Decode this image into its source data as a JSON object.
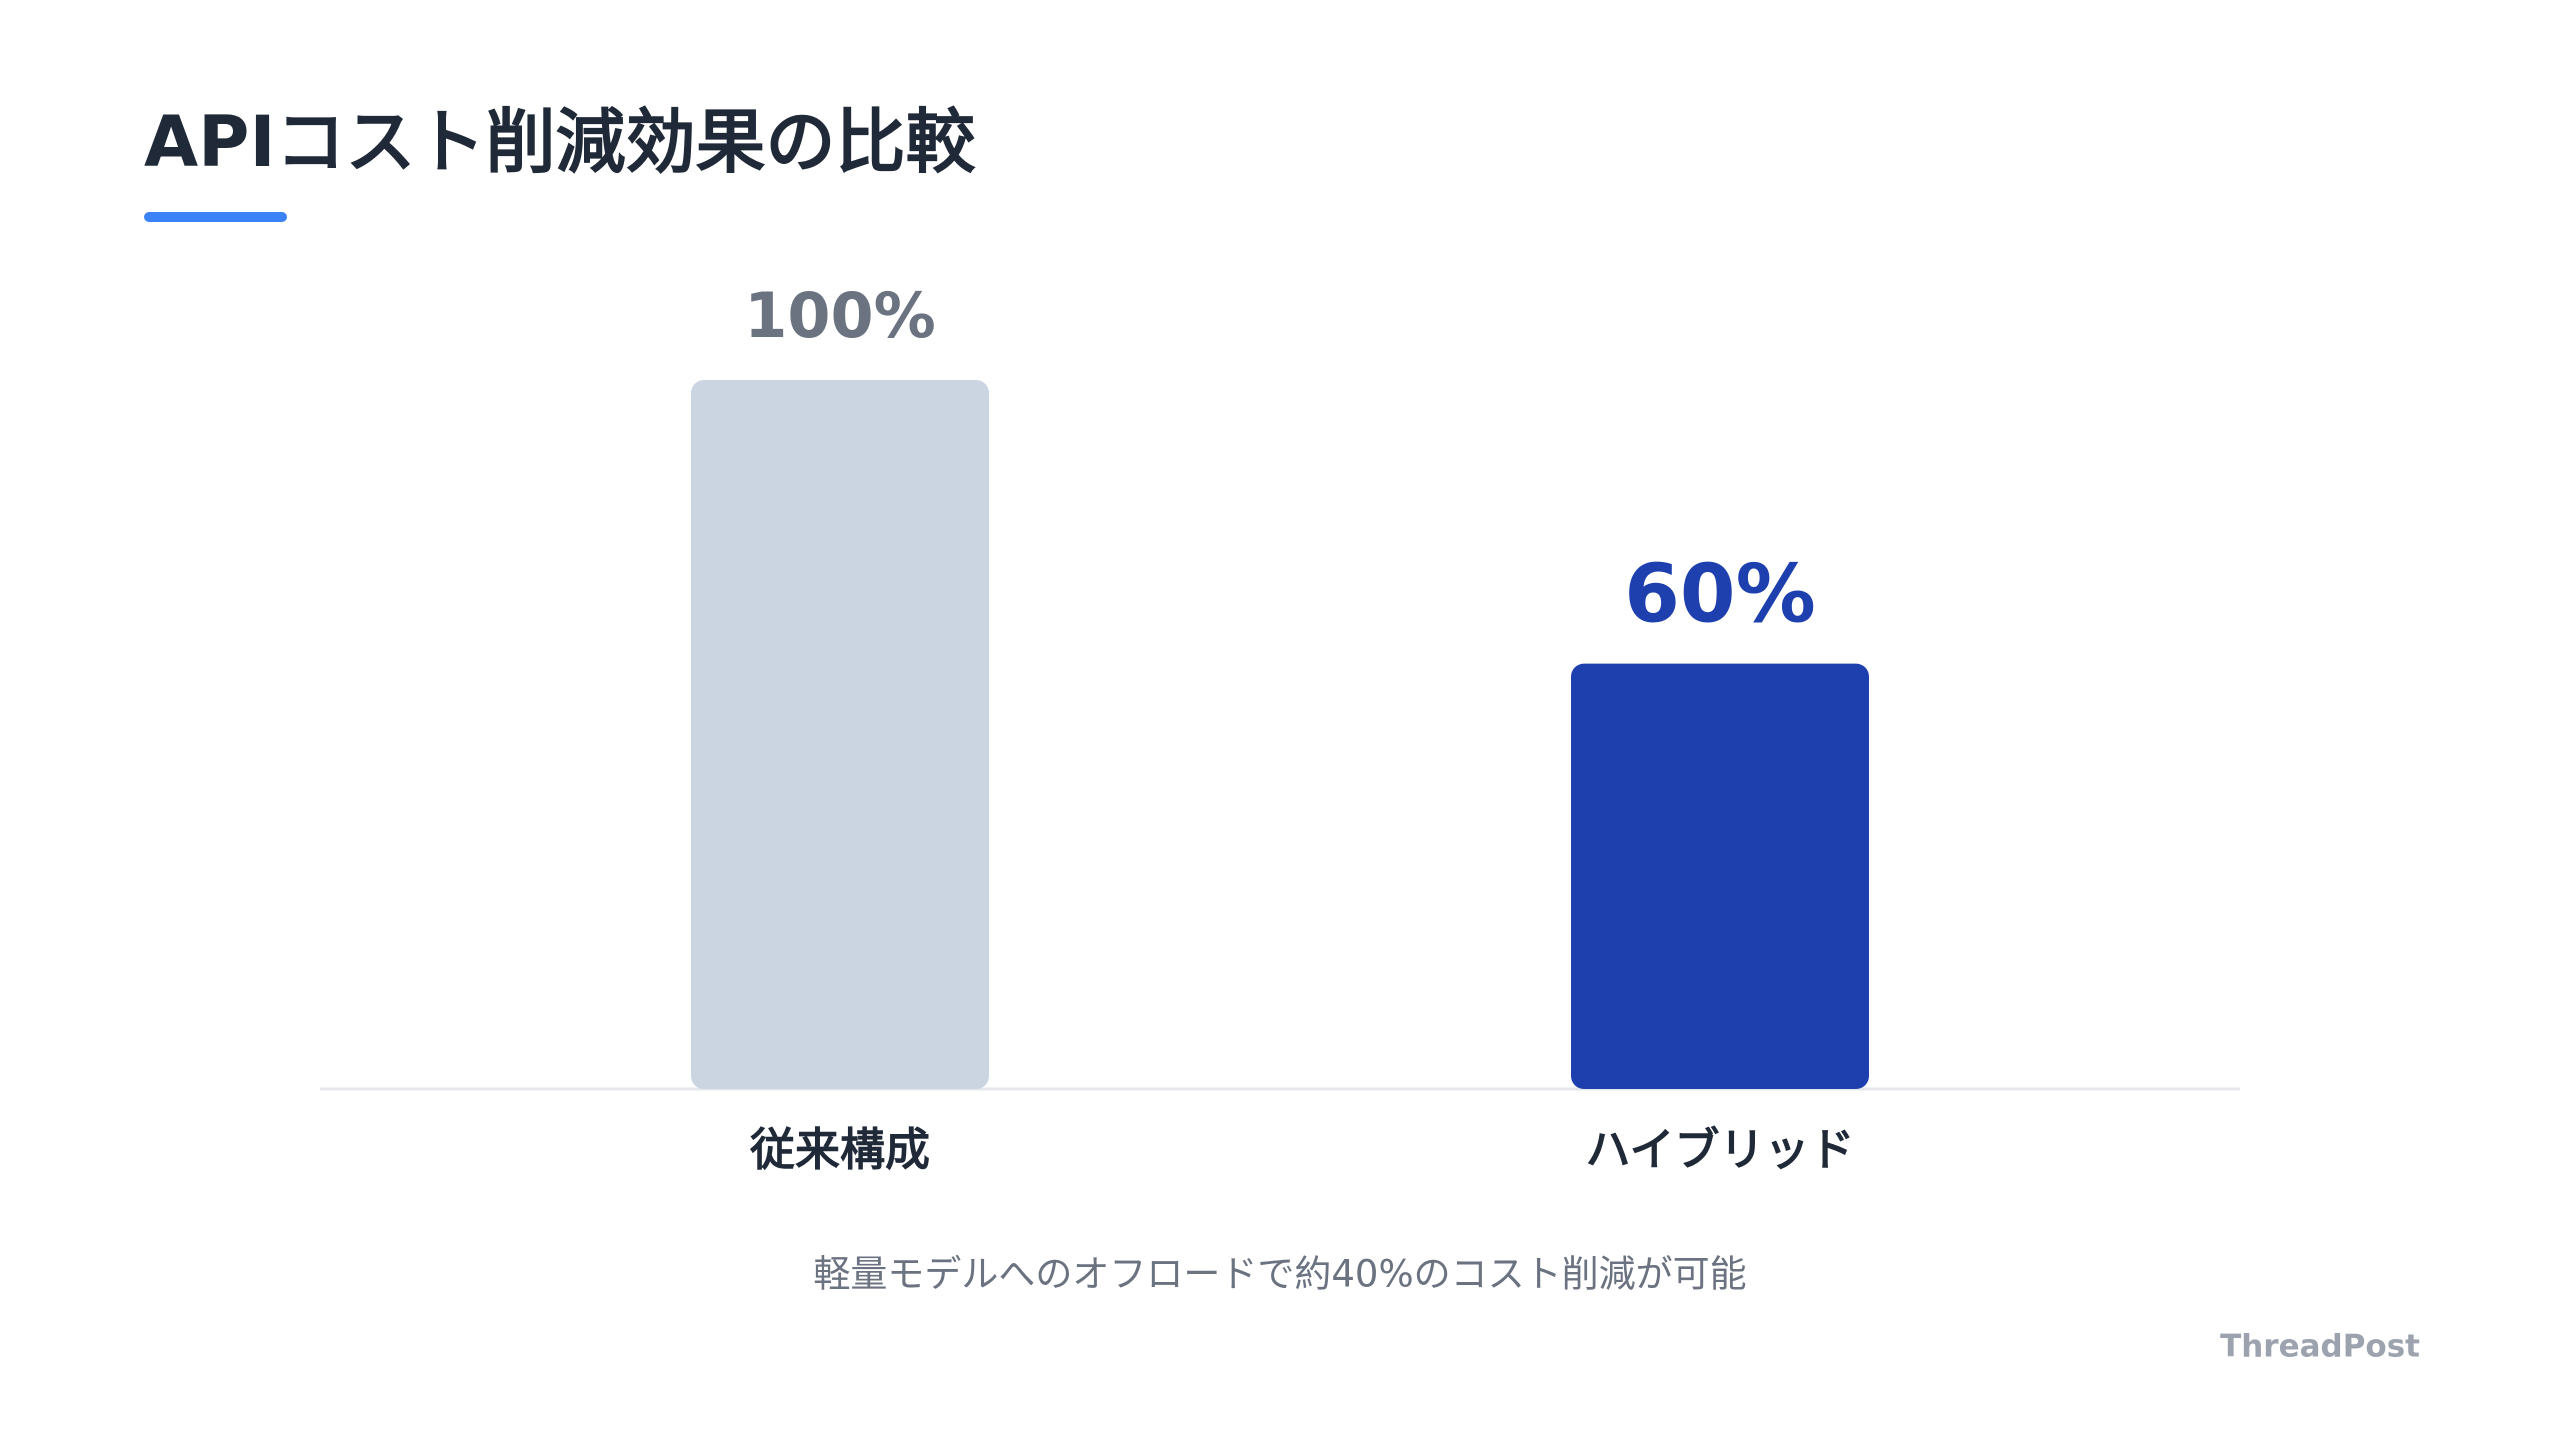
{
  "chart_data": {
    "type": "bar",
    "title": "APIコスト削減効果の比較",
    "categories": [
      "従来構成",
      "ハイブリッド"
    ],
    "values": [
      100,
      60
    ],
    "value_labels": [
      "100%",
      "60%"
    ],
    "colors": [
      "#cbd5e1",
      "#1e40af"
    ],
    "value_label_colors": [
      "#6b7280",
      "#1e40af"
    ],
    "caption": "軽量モデルへのオフロードで約40%のコスト削減が可能",
    "brand": "ThreadPost"
  }
}
